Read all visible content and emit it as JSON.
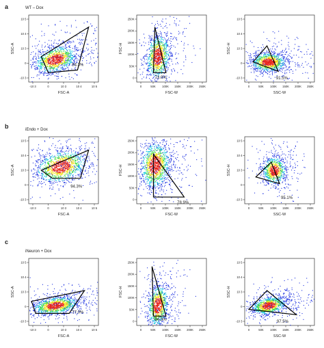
{
  "rows": [
    {
      "letter": "a",
      "condition": "WT – Dox",
      "panels": [
        {
          "xlabel": "FSC-A",
          "ylabel": "SSC-A",
          "percent": "94.3%",
          "xticks": [
            "-10 3",
            "0",
            "10 3",
            "10 4",
            "10 5"
          ],
          "yticks": [
            "10 5",
            "10 4",
            "10 3",
            "0",
            "-10 3"
          ]
        },
        {
          "xlabel": "FSC-W",
          "ylabel": "FSC-H",
          "percent": "73.0%",
          "xticks": [
            "0",
            "50K",
            "100K",
            "150K",
            "200K",
            "250K"
          ],
          "yticks": [
            "250K",
            "200K",
            "150K",
            "100K",
            "50K",
            "0"
          ]
        },
        {
          "xlabel": "SSC-W",
          "ylabel": "SSC-H",
          "percent": "91.5%",
          "xticks": [
            "0",
            "50K",
            "100K",
            "150K",
            "200K",
            "250K"
          ],
          "yticks": [
            "10 5",
            "10 4",
            "10 3",
            "0",
            "-10 3"
          ]
        }
      ]
    },
    {
      "letter": "b",
      "condition": "iEndo + Dox",
      "panels": [
        {
          "xlabel": "FSC-A",
          "ylabel": "SSC-A",
          "percent": "94.3%",
          "xticks": [
            "-10 3",
            "0",
            "10 3",
            "10 4",
            "10 5"
          ],
          "yticks": [
            "10 5",
            "10 4",
            "10 3",
            "0",
            "-10 3"
          ]
        },
        {
          "xlabel": "FSC-W",
          "ylabel": "FSC-H",
          "percent": "78.9%",
          "xticks": [
            "0",
            "50K",
            "100K",
            "150K",
            "200K",
            "250K"
          ],
          "yticks": [
            "250K",
            "200K",
            "150K",
            "100K",
            "50K",
            "0"
          ]
        },
        {
          "xlabel": "SSC-W",
          "ylabel": "SSC-H",
          "percent": "95.1%",
          "xticks": [
            "0",
            "50K",
            "100K",
            "150K",
            "200K",
            "250K"
          ],
          "yticks": [
            "10 5",
            "10 4",
            "10 3",
            "0",
            "-10 3"
          ]
        }
      ]
    },
    {
      "letter": "c",
      "condition": "iNeuron + Dox",
      "panels": [
        {
          "xlabel": "FSC-A",
          "ylabel": "SSC-A",
          "percent": "77.0%",
          "xticks": [
            "-10 3",
            "0",
            "10 3",
            "10 4",
            "10 5"
          ],
          "yticks": [
            "10 5",
            "10 4",
            "10 3",
            "0",
            "-10 3"
          ]
        },
        {
          "xlabel": "FSC-W",
          "ylabel": "FSC-H",
          "percent": "94.3%",
          "xticks": [
            "0",
            "50K",
            "100K",
            "150K",
            "200K",
            "250K"
          ],
          "yticks": [
            "250K",
            "200K",
            "150K",
            "100K",
            "50K",
            "0"
          ]
        },
        {
          "xlabel": "SSC-W",
          "ylabel": "SSC-H",
          "percent": "97.5%",
          "xticks": [
            "0",
            "50K",
            "100K",
            "150K",
            "200K",
            "250K"
          ],
          "yticks": [
            "10 5",
            "10 4",
            "10 3",
            "0",
            "-10 3"
          ]
        }
      ]
    }
  ],
  "colors": {
    "low": "#1a2fe0",
    "mid1": "#19c8e0",
    "mid2": "#3fe04a",
    "mid3": "#f2e21a",
    "high": "#e8241a",
    "gate": "#000000"
  }
}
